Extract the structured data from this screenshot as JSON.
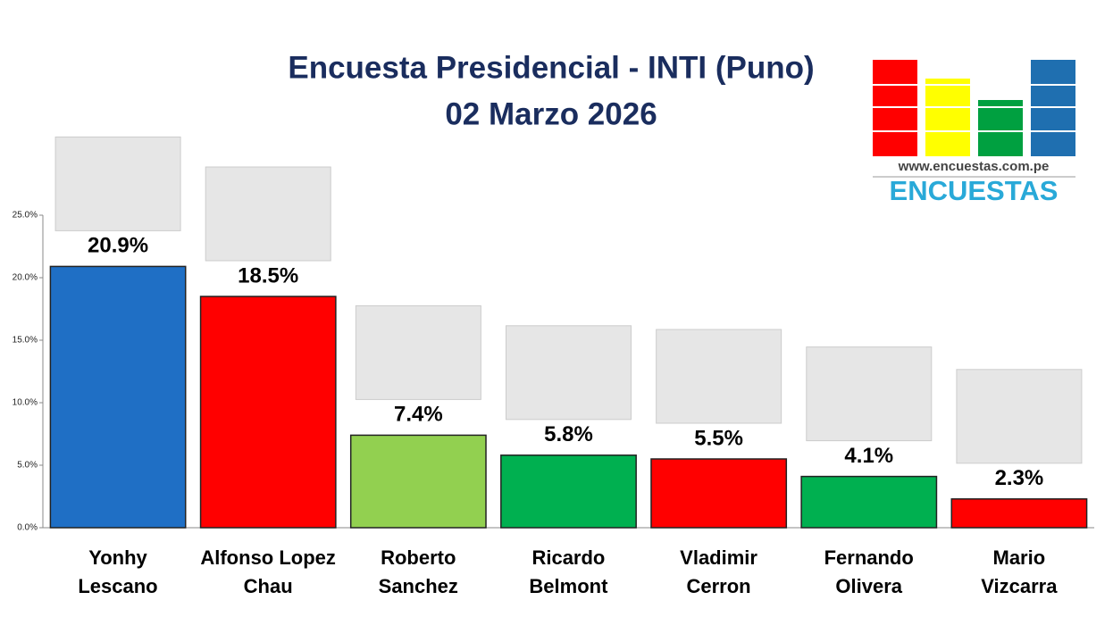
{
  "chart_data": {
    "type": "bar",
    "title": "Encuesta Presidencial - INTI (Puno)",
    "subtitle": "02 Marzo 2026",
    "categories": [
      "Yonhy\nLescano",
      "Alfonso Lopez\nChau",
      "Roberto\nSanchez",
      "Ricardo\nBelmont",
      "Vladimir\nCerron",
      "Fernando\nOlivera",
      "Mario\nVizcarra"
    ],
    "values": [
      20.9,
      18.5,
      7.4,
      5.8,
      5.5,
      4.1,
      2.3
    ],
    "value_labels": [
      "20.9%",
      "18.5%",
      "7.4%",
      "5.8%",
      "5.5%",
      "4.1%",
      "2.3%"
    ],
    "colors": [
      "#1f6fc5",
      "#ff0000",
      "#92d050",
      "#00b050",
      "#ff0000",
      "#00b050",
      "#ff0000"
    ],
    "ylim": [
      0,
      25
    ],
    "yticks": [
      {
        "value": 0,
        "label": "0.0%"
      },
      {
        "value": 5,
        "label": "5.0%"
      },
      {
        "value": 10,
        "label": "10.0%"
      },
      {
        "value": 15,
        "label": "15.0%"
      },
      {
        "value": 20,
        "label": "20.0%"
      },
      {
        "value": 25,
        "label": "25.0%"
      }
    ],
    "grid": false
  },
  "logo": {
    "url": "www.encuestas.com.pe",
    "name": "ENCUESTAS"
  }
}
